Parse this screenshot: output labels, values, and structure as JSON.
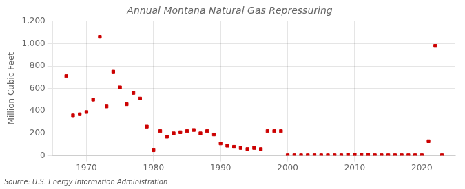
{
  "chart_data": {
    "type": "scatter",
    "title": "Annual Montana Natural Gas Repressuring",
    "y_label": "Million Cubic Feet",
    "annotations": [
      "Source: U.S. Energy Information Administration"
    ],
    "x": [
      1967,
      1968,
      1969,
      1970,
      1971,
      1972,
      1973,
      1974,
      1975,
      1976,
      1977,
      1978,
      1979,
      1980,
      1981,
      1982,
      1983,
      1984,
      1985,
      1986,
      1987,
      1988,
      1989,
      1990,
      1991,
      1992,
      1993,
      1994,
      1995,
      1996,
      1997,
      1998,
      1999,
      2000,
      2001,
      2002,
      2003,
      2004,
      2005,
      2006,
      2007,
      2008,
      2009,
      2010,
      2011,
      2012,
      2013,
      2014,
      2015,
      2016,
      2017,
      2018,
      2019,
      2020,
      2021,
      2022,
      2023
    ],
    "values": [
      710,
      360,
      370,
      390,
      500,
      1060,
      440,
      750,
      610,
      460,
      560,
      510,
      260,
      50,
      220,
      170,
      200,
      210,
      220,
      230,
      200,
      220,
      190,
      110,
      90,
      80,
      70,
      60,
      70,
      60,
      220,
      220,
      220,
      5,
      5,
      5,
      5,
      5,
      5,
      5,
      5,
      5,
      10,
      10,
      10,
      10,
      5,
      5,
      5,
      5,
      5,
      5,
      5,
      5,
      130,
      980,
      5
    ],
    "color": "#cc0000",
    "marker": "square",
    "xlim": [
      1965,
      2025
    ],
    "xticks": [
      1970,
      1980,
      1990,
      2000,
      2010,
      2020
    ],
    "ylim": [
      0,
      1200
    ],
    "yticks": [
      0,
      200,
      400,
      600,
      800,
      {
        "value": 1000,
        "label": "1,000"
      },
      {
        "value": 1200,
        "label": "1,200"
      }
    ],
    "grid": true
  }
}
